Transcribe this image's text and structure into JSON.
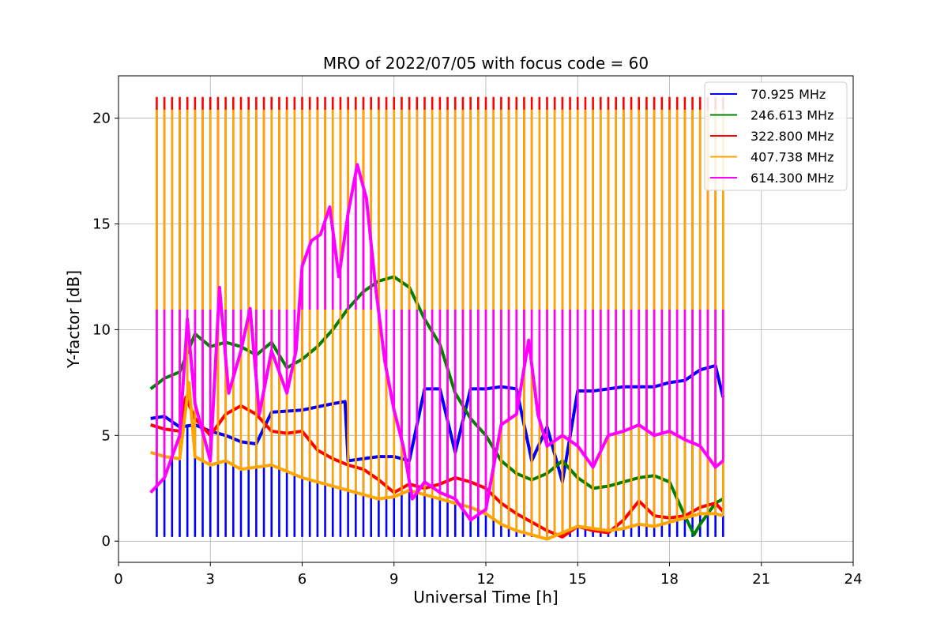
{
  "chart_data": {
    "type": "line",
    "title": "MRO of 2022/07/05 with focus code = 60",
    "xlabel": "Universal Time [h]",
    "ylabel": "Y-factor [dB]",
    "xlim": [
      0,
      24
    ],
    "ylim": [
      -1,
      22
    ],
    "xticks": [
      0,
      3,
      6,
      9,
      12,
      15,
      18,
      21,
      24
    ],
    "yticks": [
      0,
      5,
      10,
      15,
      20
    ],
    "grid": true,
    "legend_position": "top-right",
    "cal_spikes": {
      "start": 1.25,
      "end": 19.75,
      "step": 0.25
    },
    "series": [
      {
        "name": " 70.925 MHz",
        "color": "#0000ff",
        "spike_low": 0.2,
        "values": [
          [
            1.05,
            5.8
          ],
          [
            1.5,
            5.9
          ],
          [
            2.0,
            5.4
          ],
          [
            2.5,
            5.5
          ],
          [
            3.0,
            5.2
          ],
          [
            3.5,
            5.0
          ],
          [
            4.0,
            4.7
          ],
          [
            4.5,
            4.6
          ],
          [
            5.0,
            6.1
          ],
          [
            6.0,
            6.2
          ],
          [
            7.0,
            6.5
          ],
          [
            7.4,
            6.6
          ],
          [
            7.5,
            3.8
          ],
          [
            8.0,
            3.9
          ],
          [
            8.5,
            4.0
          ],
          [
            9.0,
            4.0
          ],
          [
            9.5,
            3.8
          ],
          [
            10.0,
            7.2
          ],
          [
            10.5,
            7.2
          ],
          [
            11.0,
            4.2
          ],
          [
            11.5,
            7.2
          ],
          [
            12.0,
            7.2
          ],
          [
            12.5,
            7.3
          ],
          [
            13.0,
            7.2
          ],
          [
            13.5,
            3.8
          ],
          [
            14.0,
            5.4
          ],
          [
            14.5,
            2.8
          ],
          [
            15.0,
            7.1
          ],
          [
            15.5,
            7.1
          ],
          [
            16.0,
            7.2
          ],
          [
            16.5,
            7.3
          ],
          [
            17.0,
            7.3
          ],
          [
            17.5,
            7.3
          ],
          [
            18.0,
            7.5
          ],
          [
            18.5,
            7.6
          ],
          [
            19.0,
            8.1
          ],
          [
            19.5,
            8.3
          ],
          [
            19.75,
            6.8
          ]
        ]
      },
      {
        "name": "246.613 MHz",
        "color": "#008000",
        "values": [
          [
            1.05,
            7.2
          ],
          [
            1.5,
            7.7
          ],
          [
            2.0,
            8.0
          ],
          [
            2.5,
            9.8
          ],
          [
            3.0,
            9.2
          ],
          [
            3.5,
            9.4
          ],
          [
            4.0,
            9.2
          ],
          [
            4.5,
            8.8
          ],
          [
            5.0,
            9.4
          ],
          [
            5.5,
            8.2
          ],
          [
            6.0,
            8.6
          ],
          [
            6.5,
            9.2
          ],
          [
            7.0,
            10.0
          ],
          [
            7.5,
            11.0
          ],
          [
            8.0,
            11.8
          ],
          [
            8.5,
            12.3
          ],
          [
            9.0,
            12.5
          ],
          [
            9.5,
            12.0
          ],
          [
            10.0,
            10.5
          ],
          [
            10.5,
            9.3
          ],
          [
            11.0,
            7.0
          ],
          [
            11.5,
            5.8
          ],
          [
            12.0,
            5.0
          ],
          [
            12.5,
            3.8
          ],
          [
            13.0,
            3.2
          ],
          [
            13.5,
            2.9
          ],
          [
            14.0,
            3.2
          ],
          [
            14.5,
            3.8
          ],
          [
            15.0,
            3.0
          ],
          [
            15.5,
            2.5
          ],
          [
            16.0,
            2.6
          ],
          [
            16.5,
            2.8
          ],
          [
            17.0,
            3.0
          ],
          [
            17.5,
            3.1
          ],
          [
            18.0,
            2.8
          ],
          [
            18.5,
            1.2
          ],
          [
            18.8,
            0.3
          ],
          [
            19.0,
            0.8
          ],
          [
            19.5,
            1.8
          ],
          [
            19.75,
            2.0
          ]
        ]
      },
      {
        "name": "322.800 MHz",
        "color": "#ff0000",
        "spike_high": 21.0,
        "values": [
          [
            1.05,
            5.5
          ],
          [
            1.5,
            5.3
          ],
          [
            2.0,
            5.2
          ],
          [
            2.2,
            6.8
          ],
          [
            2.5,
            5.8
          ],
          [
            3.0,
            5.0
          ],
          [
            3.5,
            6.0
          ],
          [
            4.0,
            6.4
          ],
          [
            4.5,
            6.0
          ],
          [
            5.0,
            5.2
          ],
          [
            5.5,
            5.1
          ],
          [
            6.0,
            5.2
          ],
          [
            6.5,
            4.3
          ],
          [
            7.0,
            3.9
          ],
          [
            7.5,
            3.6
          ],
          [
            8.0,
            3.4
          ],
          [
            8.5,
            2.9
          ],
          [
            9.0,
            2.3
          ],
          [
            9.5,
            2.7
          ],
          [
            10.0,
            2.5
          ],
          [
            10.5,
            2.7
          ],
          [
            11.0,
            3.0
          ],
          [
            11.5,
            2.8
          ],
          [
            12.0,
            2.5
          ],
          [
            12.5,
            1.8
          ],
          [
            13.0,
            1.3
          ],
          [
            13.5,
            0.9
          ],
          [
            14.0,
            0.5
          ],
          [
            14.5,
            0.2
          ],
          [
            15.0,
            0.7
          ],
          [
            15.5,
            0.5
          ],
          [
            16.0,
            0.4
          ],
          [
            16.5,
            1.0
          ],
          [
            17.0,
            1.9
          ],
          [
            17.5,
            1.2
          ],
          [
            18.0,
            1.1
          ],
          [
            18.5,
            1.2
          ],
          [
            19.0,
            1.6
          ],
          [
            19.5,
            1.8
          ],
          [
            19.75,
            1.4
          ]
        ]
      },
      {
        "name": "407.738 MHz",
        "color": "#ffa500",
        "spike_high": 20.4,
        "values": [
          [
            1.05,
            4.2
          ],
          [
            1.5,
            4.0
          ],
          [
            2.0,
            3.9
          ],
          [
            2.3,
            7.5
          ],
          [
            2.5,
            4.0
          ],
          [
            3.0,
            3.6
          ],
          [
            3.5,
            3.8
          ],
          [
            4.0,
            3.4
          ],
          [
            4.5,
            3.5
          ],
          [
            5.0,
            3.6
          ],
          [
            5.5,
            3.3
          ],
          [
            6.0,
            3.0
          ],
          [
            6.5,
            2.8
          ],
          [
            7.0,
            2.6
          ],
          [
            7.5,
            2.4
          ],
          [
            8.0,
            2.2
          ],
          [
            8.5,
            2.0
          ],
          [
            9.0,
            2.1
          ],
          [
            9.5,
            2.4
          ],
          [
            10.0,
            2.2
          ],
          [
            10.5,
            2.0
          ],
          [
            11.0,
            1.8
          ],
          [
            11.5,
            1.6
          ],
          [
            12.0,
            1.3
          ],
          [
            12.5,
            0.8
          ],
          [
            13.0,
            0.5
          ],
          [
            13.5,
            0.3
          ],
          [
            14.0,
            0.1
          ],
          [
            14.5,
            0.4
          ],
          [
            15.0,
            0.7
          ],
          [
            15.5,
            0.6
          ],
          [
            16.0,
            0.5
          ],
          [
            16.5,
            0.6
          ],
          [
            17.0,
            0.8
          ],
          [
            17.5,
            0.7
          ],
          [
            18.0,
            0.9
          ],
          [
            18.5,
            1.1
          ],
          [
            19.0,
            1.3
          ],
          [
            19.5,
            1.3
          ],
          [
            19.75,
            1.2
          ]
        ]
      },
      {
        "name": "614.300 MHz",
        "color": "#ff00ff",
        "spike_high": 10.95,
        "values": [
          [
            1.05,
            2.3
          ],
          [
            1.5,
            3.0
          ],
          [
            2.0,
            5.0
          ],
          [
            2.25,
            10.5
          ],
          [
            2.5,
            6.5
          ],
          [
            3.0,
            3.8
          ],
          [
            3.3,
            12.0
          ],
          [
            3.6,
            7.0
          ],
          [
            4.0,
            9.0
          ],
          [
            4.3,
            11.0
          ],
          [
            4.6,
            6.0
          ],
          [
            5.0,
            9.0
          ],
          [
            5.5,
            7.0
          ],
          [
            5.8,
            9.0
          ],
          [
            6.0,
            13.0
          ],
          [
            6.3,
            14.2
          ],
          [
            6.6,
            14.5
          ],
          [
            6.9,
            15.8
          ],
          [
            7.2,
            12.5
          ],
          [
            7.5,
            15.5
          ],
          [
            7.8,
            17.8
          ],
          [
            8.1,
            16.2
          ],
          [
            8.4,
            12.0
          ],
          [
            8.7,
            8.5
          ],
          [
            9.0,
            6.2
          ],
          [
            9.3,
            4.5
          ],
          [
            9.6,
            2.0
          ],
          [
            10.0,
            2.8
          ],
          [
            10.5,
            2.3
          ],
          [
            11.0,
            2.0
          ],
          [
            11.5,
            1.0
          ],
          [
            12.0,
            1.5
          ],
          [
            12.5,
            5.5
          ],
          [
            13.0,
            6.0
          ],
          [
            13.4,
            9.5
          ],
          [
            13.7,
            6.0
          ],
          [
            14.0,
            4.5
          ],
          [
            14.5,
            5.0
          ],
          [
            15.0,
            4.5
          ],
          [
            15.5,
            3.5
          ],
          [
            16.0,
            5.0
          ],
          [
            16.5,
            5.2
          ],
          [
            17.0,
            5.5
          ],
          [
            17.5,
            5.0
          ],
          [
            18.0,
            5.2
          ],
          [
            18.5,
            4.8
          ],
          [
            19.0,
            4.5
          ],
          [
            19.5,
            3.5
          ],
          [
            19.75,
            3.8
          ]
        ]
      }
    ]
  }
}
